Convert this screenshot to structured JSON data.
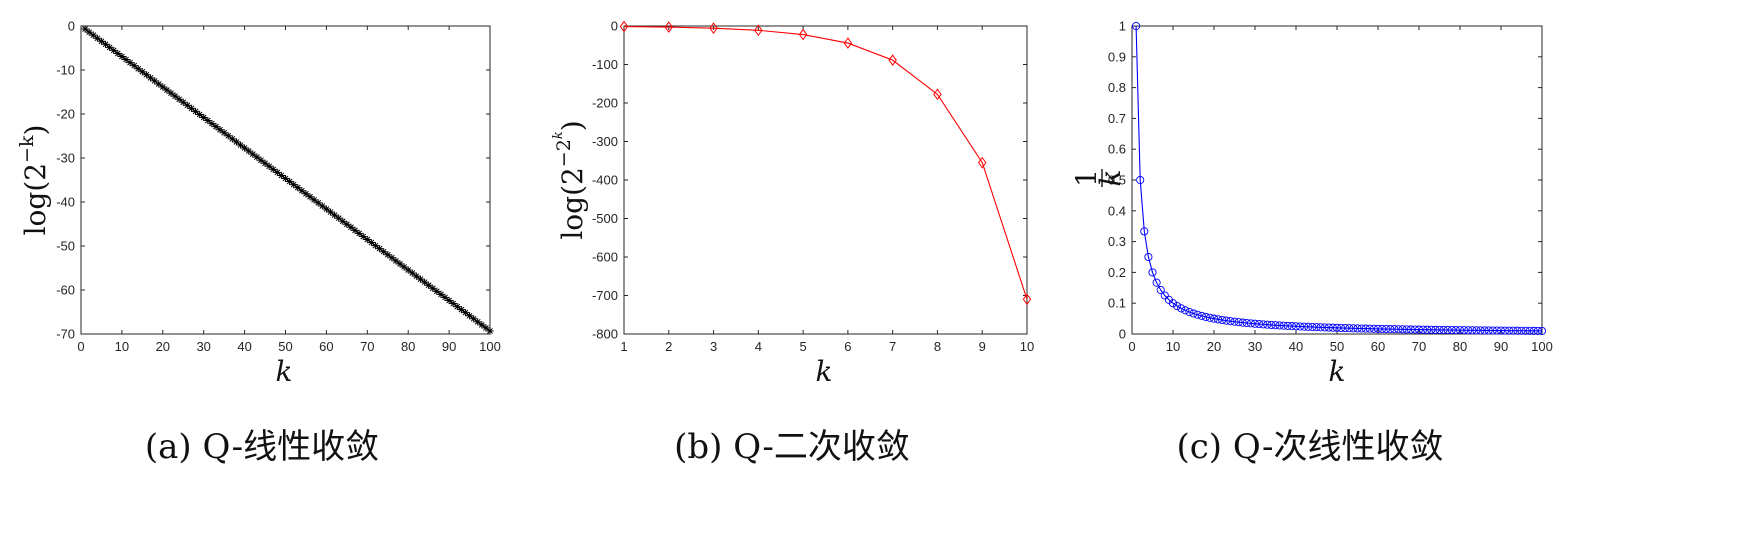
{
  "figure": {
    "panels": [
      {
        "caption": "(a)  Q-线性收敛",
        "xlabel": "k",
        "ylabel": "log(2",
        "ylabel_sup": "−k",
        "ylabel_close": ")"
      },
      {
        "caption": "(b)  Q-二次收敛",
        "xlabel": "k",
        "ylabel": "log(2",
        "ylabel_sup": "−2",
        "ylabel_supsup": "k",
        "ylabel_close": ")"
      },
      {
        "caption": "(c)  Q-次线性收敛",
        "xlabel": "k",
        "ylabel_num": "1",
        "ylabel_den": "k"
      }
    ]
  },
  "chart_data": [
    {
      "type": "line",
      "title": "",
      "xlabel": "k",
      "ylabel": "log(2^{-k})",
      "xlim": [
        0,
        100
      ],
      "ylim": [
        -70,
        0
      ],
      "xticks": [
        0,
        10,
        20,
        30,
        40,
        50,
        60,
        70,
        80,
        90,
        100
      ],
      "yticks": [
        0,
        -10,
        -20,
        -30,
        -40,
        -50,
        -60,
        -70
      ],
      "series": [
        {
          "formula": "y = -k*ln(2)",
          "x_range": [
            1,
            100
          ],
          "marker": "*",
          "color": "#000000"
        }
      ],
      "grid": false
    },
    {
      "type": "line",
      "title": "",
      "xlabel": "k",
      "ylabel": "log(2^{-2^k})",
      "xlim": [
        1,
        10
      ],
      "ylim": [
        -800,
        0
      ],
      "xticks": [
        1,
        2,
        3,
        4,
        5,
        6,
        7,
        8,
        9,
        10
      ],
      "yticks": [
        0,
        -100,
        -200,
        -300,
        -400,
        -500,
        -600,
        -700,
        -800
      ],
      "series": [
        {
          "x": [
            1,
            2,
            3,
            4,
            5,
            6,
            7,
            8,
            9,
            10
          ],
          "values": [
            -1.39,
            -2.77,
            -5.55,
            -11.09,
            -22.18,
            -44.36,
            -88.72,
            -177.45,
            -354.89,
            -709.78
          ],
          "marker": "diamond",
          "color": "#ff0000"
        }
      ],
      "grid": false
    },
    {
      "type": "line",
      "title": "",
      "xlabel": "k",
      "ylabel": "1/k",
      "xlim": [
        0,
        100
      ],
      "ylim": [
        0,
        1
      ],
      "xticks": [
        0,
        10,
        20,
        30,
        40,
        50,
        60,
        70,
        80,
        90,
        100
      ],
      "yticks": [
        0,
        0.1,
        0.2,
        0.3,
        0.4,
        0.5,
        0.6,
        0.7,
        0.8,
        0.9,
        1
      ],
      "series": [
        {
          "formula": "y = 1/k",
          "x_range": [
            1,
            100
          ],
          "marker": "circle",
          "color": "#0000ff"
        }
      ],
      "grid": false
    }
  ]
}
